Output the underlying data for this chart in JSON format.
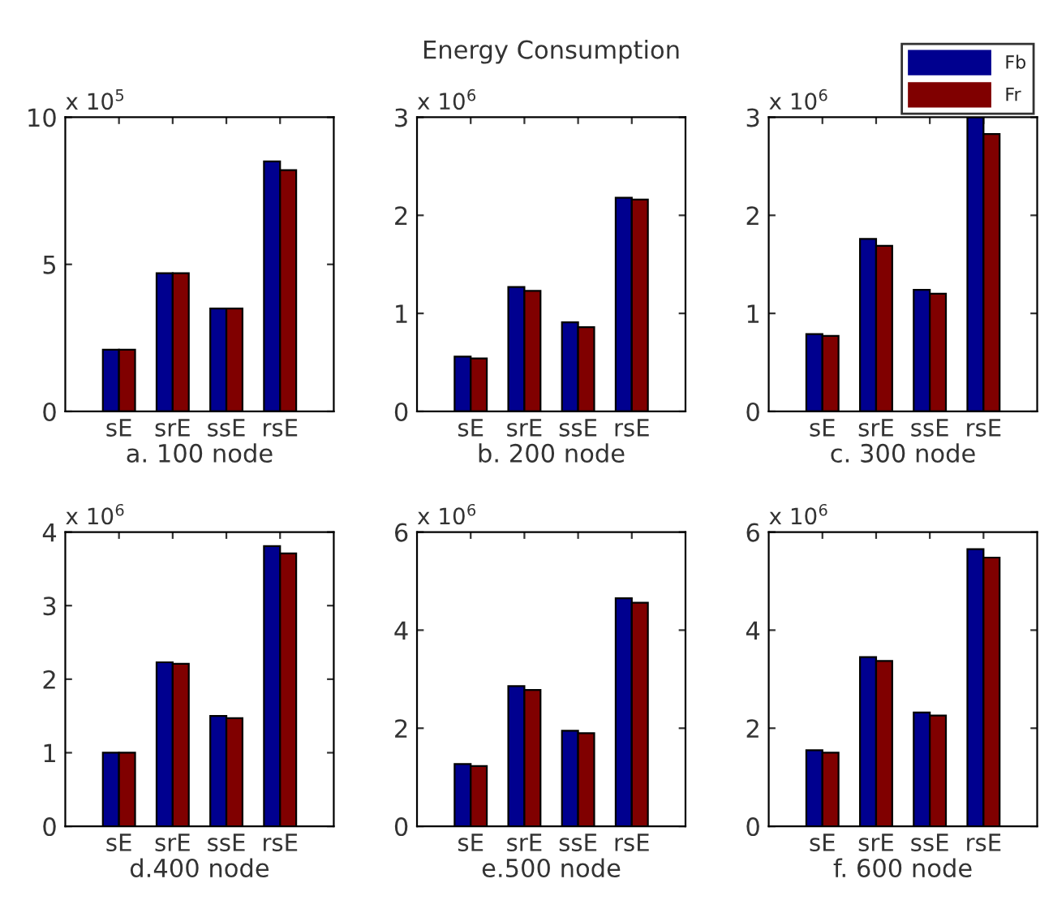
{
  "chart_data": [
    {
      "type": "bar",
      "xlabel": "a. 100 node",
      "ylabel": "x 10$^{5}$",
      "categories": [
        "sE",
        "srE",
        "ssE",
        "rsE"
      ],
      "ylim": [
        0,
        10
      ],
      "yticks": [
        0,
        5,
        10
      ],
      "grid": false,
      "legend": false,
      "series": [
        {
          "color": "#00008f",
          "values": [
            2.1,
            4.7,
            3.5,
            8.5
          ]
        },
        {
          "color": "#800000",
          "values": [
            2.1,
            4.7,
            3.5,
            8.2
          ]
        }
      ]
    },
    {
      "type": "bar",
      "title": "Energy Consumption",
      "xlabel": "b. 200 node",
      "ylabel": "x 10$^{6}$",
      "categories": [
        "sE",
        "srE",
        "ssE",
        "rsE"
      ],
      "ylim": [
        0,
        3
      ],
      "yticks": [
        0,
        1,
        2,
        3
      ],
      "grid": false,
      "legend": false,
      "series": [
        {
          "color": "#00008f",
          "values": [
            0.56,
            1.27,
            0.91,
            2.18
          ]
        },
        {
          "color": "#800000",
          "values": [
            0.54,
            1.23,
            0.86,
            2.16
          ]
        }
      ]
    },
    {
      "type": "bar",
      "xlabel": "c. 300 node",
      "ylabel": "x 10$^{6}$",
      "categories": [
        "sE",
        "srE",
        "ssE",
        "rsE"
      ],
      "ylim": [
        0,
        3
      ],
      "yticks": [
        0,
        1,
        2,
        3
      ],
      "grid": false,
      "legend": "top right",
      "series": [
        {
          "name": "Fb",
          "color": "#00008f",
          "values": [
            0.79,
            1.76,
            1.24,
            3.0
          ]
        },
        {
          "name": "Fr",
          "color": "#800000",
          "values": [
            0.77,
            1.69,
            1.2,
            2.83
          ]
        }
      ]
    },
    {
      "type": "bar",
      "xlabel": "d.400 node",
      "ylabel": "x 10$^{6}$",
      "categories": [
        "sE",
        "srE",
        "ssE",
        "rsE"
      ],
      "ylim": [
        0,
        4
      ],
      "yticks": [
        0,
        1,
        2,
        3,
        4
      ],
      "grid": false,
      "legend": false,
      "series": [
        {
          "color": "#00008f",
          "values": [
            1.0,
            2.23,
            1.5,
            3.81
          ]
        },
        {
          "color": "#800000",
          "values": [
            1.0,
            2.21,
            1.47,
            3.71
          ]
        }
      ]
    },
    {
      "type": "bar",
      "xlabel": "e.500 node",
      "ylabel": "x 10$^{6}$",
      "categories": [
        "sE",
        "srE",
        "ssE",
        "rsE"
      ],
      "ylim": [
        0,
        6
      ],
      "yticks": [
        0,
        2,
        4,
        6
      ],
      "grid": false,
      "legend": false,
      "series": [
        {
          "color": "#00008f",
          "values": [
            1.27,
            2.86,
            1.95,
            4.65
          ]
        },
        {
          "color": "#800000",
          "values": [
            1.23,
            2.78,
            1.9,
            4.56
          ]
        }
      ]
    },
    {
      "type": "bar",
      "xlabel": "f. 600 node",
      "ylabel": "x 10$^{6}$",
      "categories": [
        "sE",
        "srE",
        "ssE",
        "rsE"
      ],
      "ylim": [
        0,
        6
      ],
      "yticks": [
        0,
        2,
        4,
        6
      ],
      "grid": false,
      "legend": false,
      "series": [
        {
          "color": "#00008f",
          "values": [
            1.55,
            3.45,
            2.32,
            5.65
          ]
        },
        {
          "color": "#800000",
          "values": [
            1.5,
            3.37,
            2.26,
            5.48
          ]
        }
      ]
    }
  ]
}
